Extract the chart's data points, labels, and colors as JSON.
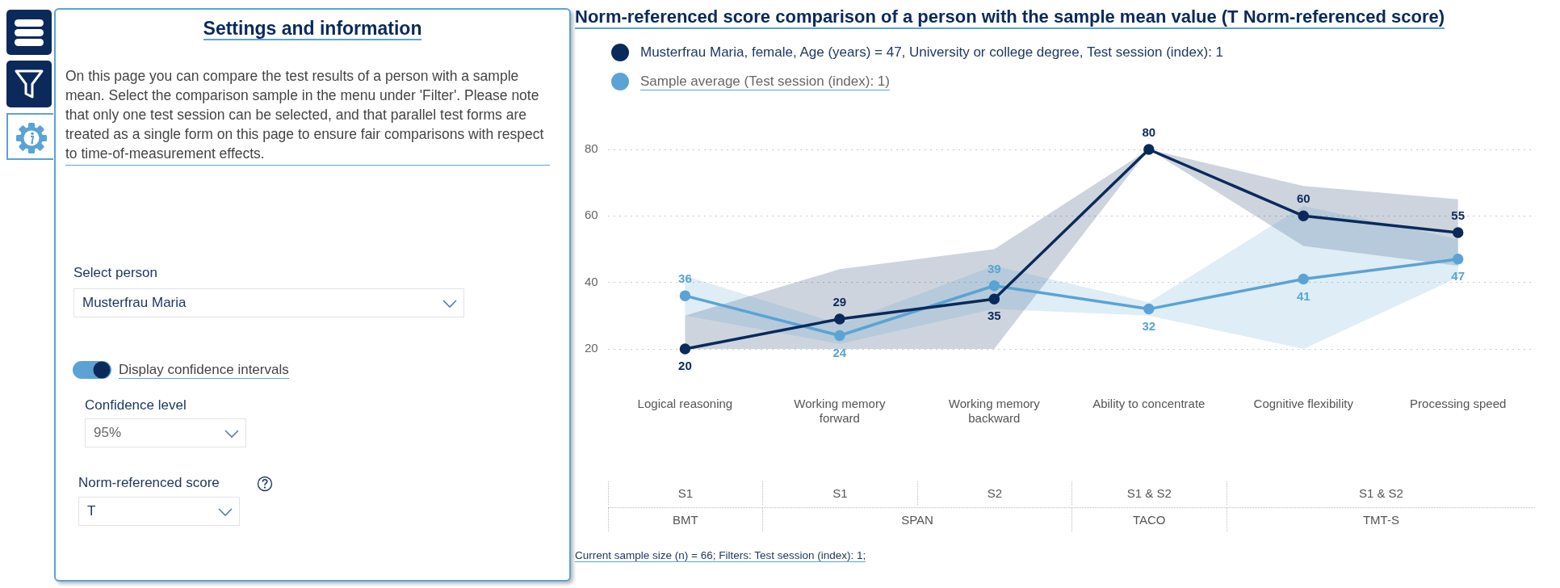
{
  "chart_data": [
    {
      "type": "other",
      "title": "Settings and information",
      "annotations": [
        "On this page you can compare the test results of a person with a sample mean. Select the comparison sample in the menu under 'Filter'. Please note that only one test session can be selected, and that parallel test forms are treated as a single form on this page to ensure fair comparisons with respect to time-of-measurement effects.",
        "Select person",
        "Musterfrau Maria",
        "Display confidence intervals",
        "Confidence level",
        "95%",
        "Norm-referenced score",
        "T"
      ]
    },
    {
      "type": "line",
      "title": "Norm-referenced score comparison of a person with the sample mean value (T Norm-referenced score)",
      "categories": [
        "Logical reasoning",
        "Working memory forward",
        "Working memory backward",
        "Ability to concentrate",
        "Cognitive flexibility",
        "Processing speed"
      ],
      "series": [
        {
          "name": "Musterfrau Maria, female, Age (years) = 47, University or college degree, Test session (index): 1",
          "color": "#0b2a5b",
          "values": [
            20,
            29,
            35,
            80,
            60,
            55
          ],
          "lower": [
            20,
            20,
            20,
            80,
            51,
            45
          ],
          "upper": [
            30,
            44,
            50,
            80,
            69,
            65
          ]
        },
        {
          "name": "Sample average (Test session (index): 1)",
          "color": "#5ba3d4",
          "values": [
            36,
            24,
            39,
            32,
            41,
            47
          ],
          "lower": [
            30,
            21.5,
            32,
            30,
            20,
            41.5
          ],
          "upper": [
            42,
            27.5,
            45,
            34,
            63,
            53
          ]
        }
      ],
      "ylim": [
        20,
        80
      ],
      "yticks": [
        20,
        40,
        60,
        80
      ],
      "grid": "y",
      "legend": "top left",
      "marker": "circle",
      "line_style": "solid",
      "data_labels": true,
      "annotations": [
        "S1",
        "S1",
        "S2",
        "S1 & S2",
        "S1 & S2",
        "BMT",
        "SPAN",
        "TACO",
        "TMT-S",
        "Current sample size (n) = 66; Filters: Test session (index): 1;"
      ]
    }
  ]
}
